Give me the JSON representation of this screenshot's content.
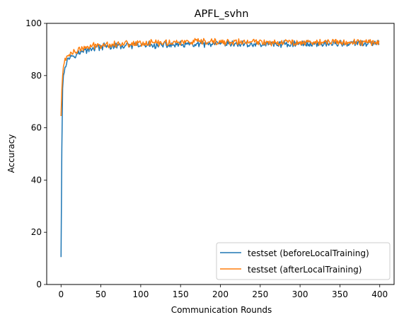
{
  "chart_data": {
    "type": "line",
    "title": "APFL_svhn",
    "xlabel": "Communication Rounds",
    "ylabel": "Accuracy",
    "xlim": [
      -18,
      418
    ],
    "ylim": [
      0,
      100
    ],
    "xticks": [
      0,
      50,
      100,
      150,
      200,
      250,
      300,
      350,
      400
    ],
    "yticks": [
      0,
      20,
      40,
      60,
      80,
      100
    ],
    "grid": false,
    "legend_position": "lower-right",
    "series": [
      {
        "name": "testset (beforeLocalTraining)",
        "color": "#1f77b4",
        "anchors": [
          [
            0,
            10.5
          ],
          [
            1,
            52
          ],
          [
            2,
            75
          ],
          [
            3,
            80
          ],
          [
            5,
            84
          ],
          [
            8,
            86
          ],
          [
            12,
            87.5
          ],
          [
            20,
            88.5
          ],
          [
            30,
            89.5
          ],
          [
            40,
            90.5
          ],
          [
            50,
            91
          ],
          [
            75,
            91.3
          ],
          [
            100,
            91.5
          ],
          [
            150,
            91.8
          ],
          [
            200,
            92
          ],
          [
            250,
            92
          ],
          [
            300,
            92.2
          ],
          [
            350,
            92.3
          ],
          [
            399,
            92.3
          ]
        ]
      },
      {
        "name": "testset (afterLocalTraining)",
        "color": "#ff7f0e",
        "anchors": [
          [
            0,
            64.5
          ],
          [
            1,
            74.5
          ],
          [
            2,
            80
          ],
          [
            3,
            83.5
          ],
          [
            5,
            86
          ],
          [
            8,
            87.5
          ],
          [
            12,
            88.5
          ],
          [
            20,
            89.5
          ],
          [
            30,
            90.5
          ],
          [
            40,
            91.3
          ],
          [
            50,
            91.8
          ],
          [
            75,
            92.2
          ],
          [
            100,
            92.5
          ],
          [
            150,
            92.8
          ],
          [
            200,
            92.8
          ],
          [
            250,
            92.8
          ],
          [
            300,
            92.8
          ],
          [
            350,
            92.8
          ],
          [
            399,
            92.8
          ]
        ]
      }
    ]
  }
}
